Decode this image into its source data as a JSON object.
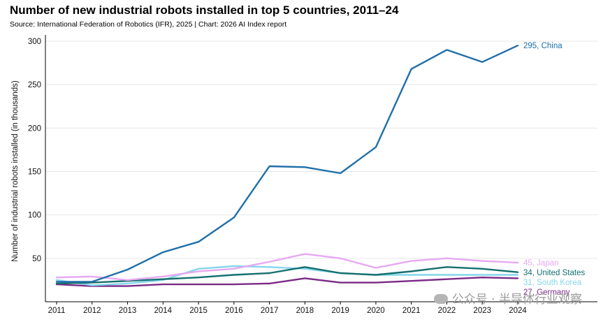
{
  "chart_data": {
    "type": "line",
    "title": "Number of new industrial robots installed in top 5 countries, 2011–24",
    "subtitle": "Source: International Federation of Robotics (IFR), 2025 | Chart: 2026 AI Index report",
    "xlabel": "",
    "ylabel": "Number of industrial robots installed (in thousands)",
    "ylim": [
      0,
      300
    ],
    "yticks": [
      50,
      100,
      150,
      200,
      250,
      300
    ],
    "x": [
      "2011",
      "2012",
      "2013",
      "2014",
      "2015",
      "2016",
      "2017",
      "2018",
      "2019",
      "2020",
      "2021",
      "2022",
      "2023",
      "2024"
    ],
    "grid": "horizontal",
    "series": [
      {
        "name": "Germany",
        "label": "27, Germany",
        "color": "#7b2a86",
        "values": [
          20,
          18,
          18,
          20,
          20,
          20,
          21,
          27,
          22,
          22,
          24,
          26,
          28,
          27
        ]
      },
      {
        "name": "South Korea",
        "label": "31, South Korea",
        "color": "#86d6ec",
        "values": [
          25,
          19,
          21,
          25,
          38,
          41,
          40,
          38,
          33,
          31,
          31,
          31,
          31,
          31
        ]
      },
      {
        "name": "United States",
        "label": "34, United States",
        "color": "#156f6f",
        "values": [
          21,
          22,
          24,
          26,
          28,
          31,
          33,
          40,
          33,
          31,
          35,
          40,
          38,
          34
        ]
      },
      {
        "name": "Japan",
        "label": "45, Japan",
        "color": "#e6a9f2",
        "values": [
          28,
          29,
          25,
          29,
          35,
          38,
          46,
          55,
          50,
          39,
          47,
          50,
          47,
          45
        ]
      },
      {
        "name": "China",
        "label": "295, China",
        "color": "#1f6fa9",
        "values": [
          23,
          23,
          37,
          57,
          69,
          97,
          156,
          155,
          148,
          178,
          268,
          290,
          276,
          295
        ]
      }
    ]
  },
  "watermark": {
    "text": "公众号 · 半导体行业观察",
    "icon": "wechat-icon"
  }
}
